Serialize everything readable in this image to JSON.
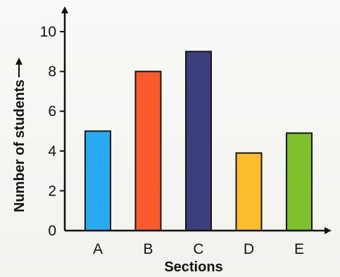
{
  "chart_data": {
    "type": "bar",
    "categories": [
      "A",
      "B",
      "C",
      "D",
      "E"
    ],
    "values": [
      5,
      8,
      9,
      3.9,
      4.9
    ],
    "colors": [
      "#27aaf2",
      "#fb5a2c",
      "#3c3f7d",
      "#fbbd2b",
      "#7ec12b"
    ],
    "xlabel": "Sections",
    "ylabel": "Number of students",
    "ylim": [
      0,
      10
    ],
    "yticks": [
      0,
      2,
      4,
      6,
      8,
      10
    ],
    "grid": false,
    "legend": "none"
  }
}
